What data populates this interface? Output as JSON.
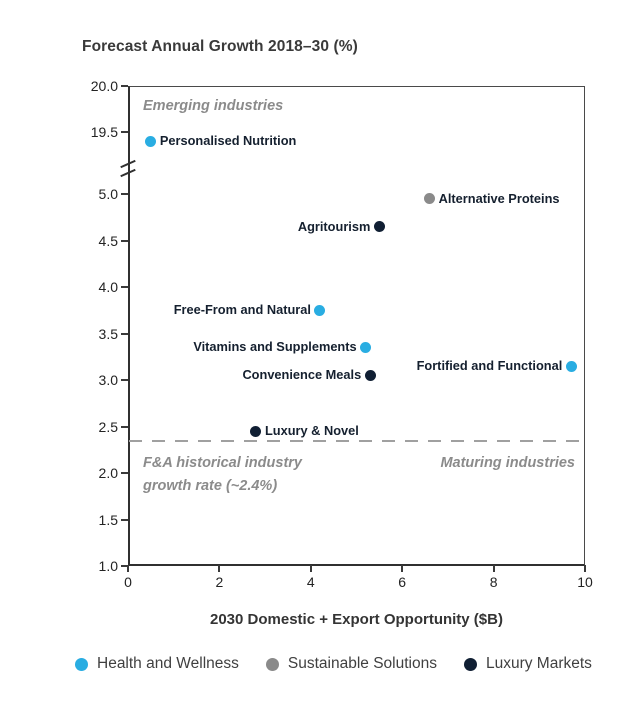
{
  "chart_data": {
    "type": "scatter",
    "title": "Forecast Annual Growth 2018–30 (%)",
    "xlabel": "2030 Domestic + Export Opportunity ($B)",
    "ylabel": "Forecast Annual Growth 2018–30 (%)",
    "xlim": [
      0,
      10
    ],
    "x_ticks": [
      "0",
      "2",
      "4",
      "6",
      "8",
      "10"
    ],
    "y_axis": {
      "broken": true,
      "upper_ticks": [
        "20.0",
        "19.5"
      ],
      "lower_ticks": [
        "5.0",
        "4.5",
        "4.0",
        "3.5",
        "3.0",
        "2.5",
        "2.0",
        "1.5",
        "1.0"
      ]
    },
    "grid": false,
    "categories": {
      "Health and Wellness": "#29ADE2",
      "Sustainable Solutions": "#8A8A8A",
      "Luxury Markets": "#101F33"
    },
    "points": [
      {
        "label": "Personalised Nutrition",
        "x": 0.5,
        "y": 19.4,
        "category": "Health and Wellness",
        "label_side": "right"
      },
      {
        "label": "Alternative Proteins",
        "x": 6.6,
        "y": 4.95,
        "category": "Sustainable Solutions",
        "label_side": "right"
      },
      {
        "label": "Agritourism",
        "x": 5.5,
        "y": 4.65,
        "category": "Luxury Markets",
        "label_side": "left"
      },
      {
        "label": "Free-From and Natural",
        "x": 4.2,
        "y": 3.75,
        "category": "Health and Wellness",
        "label_side": "left"
      },
      {
        "label": "Vitamins and Supplements",
        "x": 5.2,
        "y": 3.35,
        "category": "Health and Wellness",
        "label_side": "left"
      },
      {
        "label": "Fortified and Functional",
        "x": 9.7,
        "y": 3.15,
        "category": "Health and Wellness",
        "label_side": "left"
      },
      {
        "label": "Convenience Meals",
        "x": 5.3,
        "y": 3.05,
        "category": "Luxury Markets",
        "label_side": "left"
      },
      {
        "label": "Luxury & Novel",
        "x": 2.8,
        "y": 2.45,
        "category": "Luxury Markets",
        "label_side": "right"
      }
    ],
    "reference_line": {
      "y": 2.35,
      "style": "dashed",
      "color": "#A0A0A0"
    },
    "annotations": {
      "emerging": "Emerging industries",
      "historical": "F&A historical industry\ngrowth rate (~2.4%)",
      "maturing": "Maturing industries"
    }
  },
  "legend": {
    "items": [
      {
        "label": "Health and Wellness",
        "color": "#29ADE2"
      },
      {
        "label": "Sustainable Solutions",
        "color": "#8A8A8A"
      },
      {
        "label": "Luxury Markets",
        "color": "#101F33"
      }
    ]
  }
}
